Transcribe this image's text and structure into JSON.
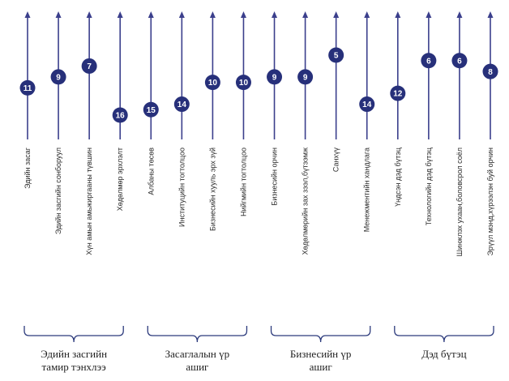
{
  "chart_data": {
    "type": "scatter",
    "axis_direction": "higher rank value plotted lower",
    "ylim": [
      1,
      17
    ],
    "categories": [
      "Эдийн засаг",
      "Эдийн засгийн сонборуул",
      "Хүн амын амьжиргааны түвшин",
      "Хөдөлмөр эрхлэлт",
      "Албаны төсөв",
      "Институцийн тогтолцоо",
      "Бизнесийн хууль эрх зүй",
      "Нийгмийн тогтолцоо",
      "Бизнесийн орчин",
      "Хөдөлмөрийн зах зээл,бүтээмж",
      "Санхүү",
      "Менежментийн хандлага",
      "Үндсэн дэд бүтэц",
      "Технологийн дэд бүтэц",
      "Шинжлэх ухаан,боловсрол соёл",
      "Эрүүл мэнд,хүрээлэн буй орчин"
    ],
    "values": [
      11,
      9,
      7,
      16,
      15,
      14,
      10,
      10,
      9,
      9,
      5,
      14,
      12,
      6,
      6,
      8
    ],
    "groups": [
      {
        "label_lines": [
          "Эдийн засгийн",
          "тамир тэнхлээ"
        ],
        "start": 0,
        "end": 3
      },
      {
        "label_lines": [
          "Засаглалын үр",
          "ашиг"
        ],
        "start": 4,
        "end": 7
      },
      {
        "label_lines": [
          "Бизнесийн үр",
          "ашиг"
        ],
        "start": 8,
        "end": 11
      },
      {
        "label_lines": [
          "Дэд бүтэц"
        ],
        "start": 12,
        "end": 15
      }
    ],
    "colors": {
      "line": "#3b3f8c",
      "badge": "#27307a",
      "bracket": "#2c3a7c"
    }
  }
}
